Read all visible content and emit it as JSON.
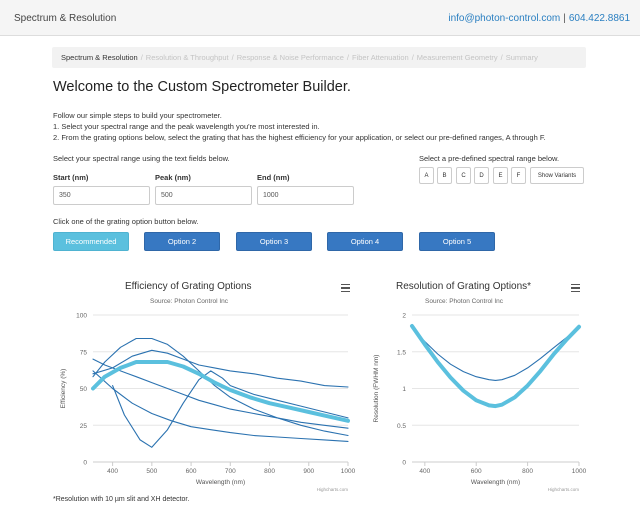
{
  "header": {
    "title": "Spectrum & Resolution",
    "email": "info@photon-control.com",
    "separator": "|",
    "phone": "604.422.8861"
  },
  "breadcrumb": {
    "items": [
      "Spectrum & Resolution",
      "Resolution & Throughput",
      "Response & Noise Performance",
      "Fiber Attenuation",
      "Measurement Geometry",
      "Summary"
    ],
    "separator": "/"
  },
  "main": {
    "title": "Welcome to the Custom Spectrometer Builder.",
    "intro": [
      "Follow our simple steps to build your spectrometer.",
      "1. Select your spectral range and the peak wavelength you're most interested in.",
      "2. From the grating options below, select the grating that has the highest efficiency for your application, or select our pre-defined ranges, A through F."
    ],
    "range_prompt": "Select your spectral range using the text fields below.",
    "predef_prompt": "Select a pre-defined spectral range below.",
    "fields": {
      "start": {
        "label": "Start (nm)",
        "value": "350"
      },
      "peak": {
        "label": "Peak (nm)",
        "value": "500"
      },
      "end": {
        "label": "End (nm)",
        "value": "1000"
      }
    },
    "predef_buttons": [
      "A",
      "B",
      "C",
      "D",
      "E",
      "F"
    ],
    "show_variants": "Show Variants",
    "grating_prompt": "Click one of the grating option button below.",
    "options": [
      "Recommended",
      "Option 2",
      "Option 3",
      "Option 4",
      "Option 5"
    ],
    "footnote": "*Resolution with 10 µm slit and XH detector."
  },
  "colors": {
    "accent": "#5bc0de",
    "primary_button": "#3778c2",
    "series_dark": "#2b72b0",
    "link": "#2a7fc1"
  },
  "icons": {
    "chart_menu": "hamburger-menu-icon"
  },
  "chart_data": [
    {
      "type": "line",
      "title": "Efficiency of Grating Options",
      "subtitle": "Source: Photon Control Inc",
      "xlabel": "Wavelength (nm)",
      "ylabel": "Efficiency (%)",
      "xlim": [
        350,
        1000
      ],
      "ylim": [
        0,
        100
      ],
      "xticks": [
        400,
        500,
        600,
        700,
        800,
        900,
        1000
      ],
      "yticks": [
        0,
        25,
        50,
        75,
        100
      ],
      "credits": "Highcharts.com",
      "series": [
        {
          "highlight": true,
          "x": [
            350,
            380,
            420,
            460,
            500,
            540,
            580,
            620,
            660,
            700,
            750,
            800,
            850,
            900,
            950,
            1000
          ],
          "values": [
            50,
            58,
            64,
            68,
            68,
            68,
            65,
            60,
            54,
            49,
            44,
            40,
            37,
            34,
            31,
            28
          ]
        },
        {
          "x": [
            350,
            380,
            420,
            460,
            500,
            540,
            580,
            620,
            660,
            700,
            760,
            820,
            880,
            940,
            1000
          ],
          "values": [
            58,
            68,
            78,
            84,
            84,
            80,
            72,
            62,
            52,
            44,
            36,
            30,
            25,
            21,
            18
          ]
        },
        {
          "x": [
            350,
            400,
            450,
            500,
            540,
            580,
            620,
            660,
            700,
            760,
            820,
            880,
            940,
            1000
          ],
          "values": [
            60,
            64,
            72,
            76,
            74,
            70,
            66,
            64,
            62,
            60,
            57,
            55,
            52,
            51
          ]
        },
        {
          "x": [
            350,
            380,
            420,
            460,
            500,
            540,
            580,
            620,
            660,
            700,
            760,
            820,
            880,
            940,
            1000
          ],
          "values": [
            70,
            66,
            62,
            58,
            54,
            50,
            46,
            42,
            39,
            36,
            33,
            30,
            27,
            25,
            23
          ]
        },
        {
          "x": [
            350,
            400,
            450,
            500,
            550,
            600,
            650,
            700,
            760,
            820,
            880,
            940,
            1000
          ],
          "values": [
            62,
            50,
            40,
            33,
            28,
            24,
            22,
            20,
            18,
            17,
            16,
            15,
            14
          ]
        },
        {
          "x": [
            400,
            430,
            470,
            500,
            540,
            580,
            620,
            650,
            680,
            700,
            760,
            820,
            880,
            940,
            1000
          ],
          "values": [
            52,
            32,
            15,
            10,
            22,
            40,
            56,
            62,
            57,
            52,
            46,
            42,
            38,
            34,
            30
          ]
        }
      ]
    },
    {
      "type": "line",
      "title": "Resolution of Grating Options*",
      "subtitle": "Source: Photon Control Inc",
      "xlabel": "Wavelength (nm)",
      "ylabel": "Resolution (FWHM nm)",
      "xlim": [
        350,
        1000
      ],
      "ylim": [
        0,
        2
      ],
      "xticks": [
        400,
        600,
        800,
        1000
      ],
      "yticks": [
        0,
        0.5,
        1,
        1.5,
        2
      ],
      "credits": "Highcharts.com",
      "series": [
        {
          "highlight": true,
          "x": [
            350,
            400,
            450,
            500,
            550,
            600,
            650,
            675,
            700,
            750,
            800,
            850,
            900,
            950,
            1000
          ],
          "values": [
            1.85,
            1.6,
            1.36,
            1.15,
            0.97,
            0.84,
            0.77,
            0.76,
            0.78,
            0.88,
            1.04,
            1.24,
            1.46,
            1.66,
            1.84
          ]
        },
        {
          "x": [
            350,
            400,
            450,
            500,
            550,
            600,
            650,
            675,
            700,
            750,
            800,
            850,
            900,
            950,
            1000
          ],
          "values": [
            1.82,
            1.64,
            1.47,
            1.33,
            1.23,
            1.16,
            1.12,
            1.11,
            1.12,
            1.18,
            1.28,
            1.41,
            1.55,
            1.69,
            1.83
          ]
        }
      ]
    }
  ]
}
